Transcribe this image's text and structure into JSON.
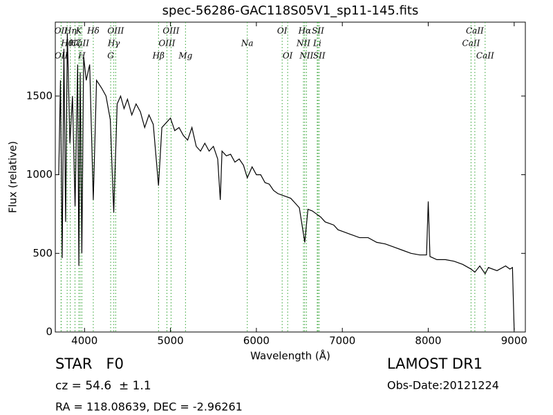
{
  "chart_data": {
    "type": "line",
    "title": "spec-56286-GAC118S05V1_sp11-145.fits",
    "x_label": "Wavelength (Å)",
    "y_label": "Flux (relative)",
    "xlim": [
      3660,
      9130
    ],
    "ylim": [
      0,
      1970
    ],
    "xticks": [
      4000,
      5000,
      6000,
      7000,
      8000,
      9000
    ],
    "yticks": [
      0,
      500,
      1000,
      1500
    ],
    "grid": false,
    "series": [
      {
        "name": "flux",
        "color": "#000000",
        "x": [
          3700,
          3720,
          3740,
          3760,
          3780,
          3800,
          3830,
          3860,
          3890,
          3920,
          3934,
          3950,
          3969,
          3990,
          4020,
          4060,
          4102,
          4140,
          4200,
          4250,
          4300,
          4340,
          4380,
          4420,
          4460,
          4500,
          4550,
          4600,
          4650,
          4700,
          4750,
          4800,
          4861,
          4900,
          4950,
          5000,
          5050,
          5100,
          5150,
          5200,
          5250,
          5300,
          5350,
          5400,
          5450,
          5500,
          5550,
          5580,
          5600,
          5650,
          5700,
          5750,
          5800,
          5850,
          5894,
          5950,
          6000,
          6050,
          6100,
          6150,
          6200,
          6250,
          6300,
          6350,
          6400,
          6450,
          6500,
          6563,
          6600,
          6650,
          6700,
          6750,
          6800,
          6850,
          6900,
          6950,
          7000,
          7100,
          7200,
          7300,
          7400,
          7500,
          7600,
          7700,
          7800,
          7900,
          7980,
          8000,
          8020,
          8100,
          8200,
          8300,
          8400,
          8498,
          8542,
          8600,
          8662,
          8700,
          8800,
          8900,
          8950,
          8980,
          9000
        ],
        "values": [
          1000,
          1600,
          470,
          1800,
          700,
          1900,
          1200,
          1500,
          800,
          1700,
          420,
          1650,
          500,
          1750,
          1600,
          1700,
          840,
          1600,
          1550,
          1500,
          1350,
          760,
          1450,
          1500,
          1420,
          1480,
          1380,
          1450,
          1400,
          1300,
          1380,
          1320,
          930,
          1300,
          1330,
          1360,
          1280,
          1300,
          1250,
          1220,
          1300,
          1180,
          1150,
          1200,
          1150,
          1180,
          1100,
          840,
          1150,
          1120,
          1130,
          1080,
          1100,
          1060,
          980,
          1050,
          1000,
          1000,
          950,
          940,
          900,
          880,
          870,
          860,
          850,
          820,
          790,
          570,
          780,
          770,
          750,
          730,
          700,
          690,
          680,
          650,
          640,
          620,
          600,
          600,
          570,
          560,
          540,
          520,
          500,
          490,
          490,
          830,
          480,
          460,
          460,
          450,
          430,
          400,
          380,
          420,
          370,
          410,
          390,
          420,
          400,
          410,
          10
        ]
      }
    ],
    "line_markers": {
      "color": "#2ca02c",
      "lines": [
        {
          "label": "OII",
          "x": 3727
        },
        {
          "label": "Hθ",
          "x": 3798
        },
        {
          "label": "OII",
          "x": 3729
        },
        {
          "label": "Hη",
          "x": 3835
        },
        {
          "label": "Hζ",
          "x": 3889
        },
        {
          "label": "H",
          "x": 3969
        },
        {
          "label": "K",
          "x": 3934
        },
        {
          "label": "CaII",
          "x": 3950
        },
        {
          "label": "G",
          "x": 4304
        },
        {
          "label": "Hδ",
          "x": 4102
        },
        {
          "label": "Hγ",
          "x": 4341
        },
        {
          "label": "Hβ",
          "x": 4861
        },
        {
          "label": "OIII",
          "x": 4363
        },
        {
          "label": "OIII",
          "x": 4959
        },
        {
          "label": "Mg",
          "x": 5175
        },
        {
          "label": "OIII",
          "x": 5007
        },
        {
          "label": "Na",
          "x": 5894
        },
        {
          "label": "OI",
          "x": 6364
        },
        {
          "label": "OI",
          "x": 6300
        },
        {
          "label": "NII",
          "x": 6548
        },
        {
          "label": "NII",
          "x": 6583
        },
        {
          "label": "Hα",
          "x": 6563
        },
        {
          "label": "Li",
          "x": 6708
        },
        {
          "label": "SII",
          "x": 6731
        },
        {
          "label": "SII",
          "x": 6717
        },
        {
          "label": "CaII",
          "x": 8498
        },
        {
          "label": "CaII",
          "x": 8662
        },
        {
          "label": "CaII",
          "x": 8542
        }
      ]
    },
    "info": {
      "class": "STAR   F0",
      "cz": "cz = 54.6  ± 1.1",
      "coords": "RA = 118.08639, DEC = -2.96261",
      "survey": "LAMOST DR1",
      "date": "Obs-Date:20121224"
    }
  }
}
